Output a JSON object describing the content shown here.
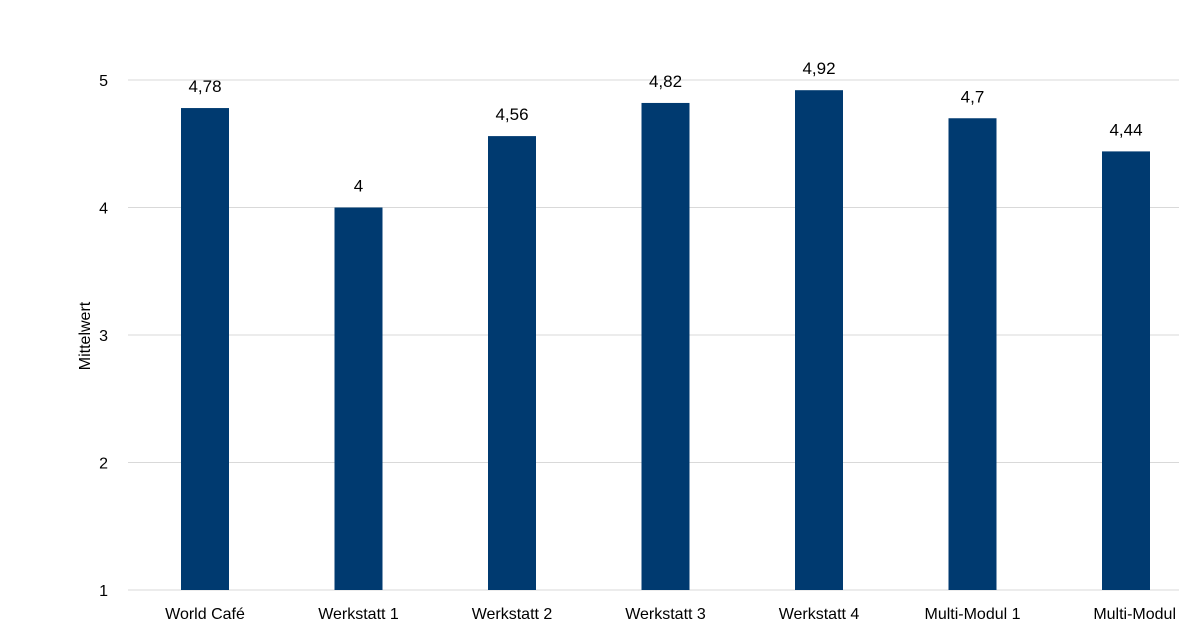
{
  "chart_data": {
    "type": "bar",
    "title": "",
    "xlabel": "",
    "ylabel": "Mittelwert",
    "categories": [
      "World Café",
      "Werkstatt 1",
      "Werkstatt 2",
      "Werkstatt 3",
      "Werkstatt 4",
      "Multi-Modul 1",
      "Multi-Modul"
    ],
    "values": [
      4.78,
      4,
      4.56,
      4.82,
      4.92,
      4.7,
      4.44
    ],
    "data_labels": [
      "4,78",
      "4",
      "4,56",
      "4,82",
      "4,92",
      "4,7",
      "4,44"
    ],
    "ylim": [
      1,
      5
    ],
    "yticks": [
      1,
      2,
      3,
      4,
      5
    ],
    "ytick_labels": [
      "1",
      "2",
      "3",
      "4",
      "5"
    ],
    "grid": true,
    "legend": "none",
    "colors": {
      "bar": "#003a70",
      "grid": "#d9d9d9",
      "text": "#000000"
    }
  }
}
